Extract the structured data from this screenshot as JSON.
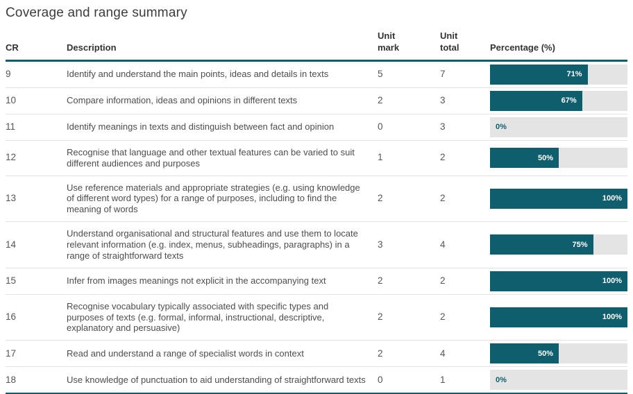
{
  "page": {
    "title": "Coverage and range summary"
  },
  "colors": {
    "bar_fill": "#0f5e6d",
    "bar_track": "#e4e4e4",
    "header_rule": "#0f5e6d"
  },
  "table": {
    "headers": {
      "cr": "CR",
      "description": "Description",
      "unit_mark": "Unit\nmark",
      "unit_total": "Unit\ntotal",
      "percentage": "Percentage (%)"
    },
    "rows": [
      {
        "cr": "9",
        "description": "Identify and understand the main points, ideas and details in texts",
        "unit_mark": "5",
        "unit_total": "7",
        "percentage": 71,
        "percent_label": "71%"
      },
      {
        "cr": "10",
        "description": "Compare information, ideas and opinions in different texts",
        "unit_mark": "2",
        "unit_total": "3",
        "percentage": 67,
        "percent_label": "67%"
      },
      {
        "cr": "11",
        "description": "Identify meanings in texts and distinguish between fact and opinion",
        "unit_mark": "0",
        "unit_total": "3",
        "percentage": 0,
        "percent_label": "0%"
      },
      {
        "cr": "12",
        "description": "Recognise that language and other textual features can be varied to suit different audiences and purposes",
        "unit_mark": "1",
        "unit_total": "2",
        "percentage": 50,
        "percent_label": "50%"
      },
      {
        "cr": "13",
        "description": "Use reference materials and appropriate strategies (e.g. using knowledge of different word types) for a range of purposes, including to find the meaning of words",
        "unit_mark": "2",
        "unit_total": "2",
        "percentage": 100,
        "percent_label": "100%"
      },
      {
        "cr": "14",
        "description": "Understand organisational and structural features and use them to locate relevant information (e.g. index, menus, subheadings, paragraphs) in a range of straightforward texts",
        "unit_mark": "3",
        "unit_total": "4",
        "percentage": 75,
        "percent_label": "75%"
      },
      {
        "cr": "15",
        "description": "Infer from images meanings not explicit in the accompanying text",
        "unit_mark": "2",
        "unit_total": "2",
        "percentage": 100,
        "percent_label": "100%"
      },
      {
        "cr": "16",
        "description": "Recognise vocabulary typically associated with specific types and purposes of texts (e.g. formal, informal, instructional, descriptive, explanatory and persuasive)",
        "unit_mark": "2",
        "unit_total": "2",
        "percentage": 100,
        "percent_label": "100%"
      },
      {
        "cr": "17",
        "description": "Read and understand a range of specialist words in context",
        "unit_mark": "2",
        "unit_total": "4",
        "percentage": 50,
        "percent_label": "50%"
      },
      {
        "cr": "18",
        "description": "Use knowledge of punctuation to aid understanding of straightforward texts",
        "unit_mark": "0",
        "unit_total": "1",
        "percentage": 0,
        "percent_label": "0%"
      }
    ]
  },
  "chart_data": {
    "type": "bar",
    "orientation": "horizontal",
    "title": "Coverage and range summary",
    "categories": [
      "9",
      "10",
      "11",
      "12",
      "13",
      "14",
      "15",
      "16",
      "17",
      "18"
    ],
    "values": [
      71,
      67,
      0,
      50,
      100,
      75,
      100,
      100,
      50,
      0
    ],
    "series_label": "Percentage (%)",
    "xlim": [
      0,
      100
    ],
    "data_labels": [
      "71%",
      "67%",
      "0%",
      "50%",
      "100%",
      "75%",
      "100%",
      "100%",
      "50%",
      "0%"
    ],
    "bar_color": "#0f5e6d",
    "track_color": "#e4e4e4",
    "grid": false,
    "legend": false
  }
}
